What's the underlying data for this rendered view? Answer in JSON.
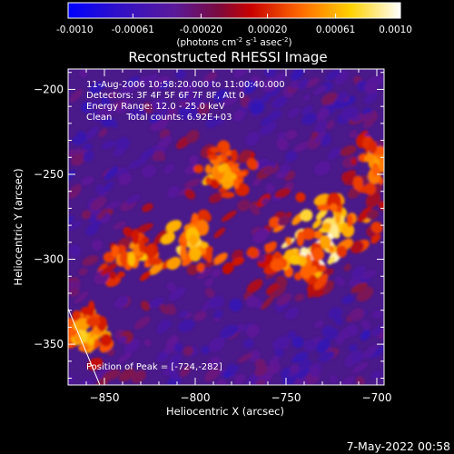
{
  "colorbar": {
    "tick_labels": [
      "-0.0010",
      "-0.00061",
      "-0.00020",
      "0.00020",
      "0.00061",
      "0.0010"
    ],
    "tick_values": [
      -0.001,
      -0.00061,
      -0.0002,
      0.0002,
      0.00061,
      0.001
    ],
    "unit_prefix": "(photons cm",
    "unit_exp1": "-2",
    "unit_mid": " s",
    "unit_exp2": "-1",
    "unit_mid2": " asec",
    "unit_exp3": "-2",
    "unit_suffix": ")"
  },
  "annotations": {
    "time_range": "11-Aug-2006 10:58:20.000 to 11:00:40.000",
    "detectors": "Detectors: 3F 4F 5F 6F 7F 8F, Att 0",
    "energy_range": "Energy Range: 12.0 - 25.0 keV",
    "clean_counts": "Clean     Total counts: 6.92E+03",
    "peak_position": "Position of Peak = [-724,-282]"
  },
  "footer": {
    "date": "7-May-2022 00:58"
  },
  "chart_data": {
    "type": "heatmap",
    "title": "Reconstructed RHESSI Image",
    "xlabel": "Heliocentric X (arcsec)",
    "ylabel": "Heliocentric Y (arcsec)",
    "xlim": [
      -870,
      -696
    ],
    "ylim": [
      -374,
      -188
    ],
    "x_ticks": [
      -850,
      -800,
      -750,
      -700
    ],
    "y_ticks": [
      -200,
      -250,
      -300,
      -350
    ],
    "x_tick_labels": [
      "−850",
      "−800",
      "−750",
      "−700"
    ],
    "y_tick_labels": [
      "−200",
      "−250",
      "−300",
      "−350"
    ],
    "value_range": [
      -0.001,
      0.001
    ],
    "colormap": "rainbow-like: blue → purple → red → orange → yellow → white",
    "peak": {
      "x": -724,
      "y": -282
    },
    "bright_regions": [
      {
        "x": -800,
        "y": -290,
        "level": 0.0008
      },
      {
        "x": -785,
        "y": -250,
        "level": 0.0007
      },
      {
        "x": -724,
        "y": -282,
        "level": 0.001
      },
      {
        "x": -745,
        "y": -300,
        "level": 0.0008
      },
      {
        "x": -862,
        "y": -345,
        "level": 0.0008
      },
      {
        "x": -835,
        "y": -300,
        "level": 0.0006
      },
      {
        "x": -700,
        "y": -245,
        "level": 0.0006
      }
    ]
  }
}
